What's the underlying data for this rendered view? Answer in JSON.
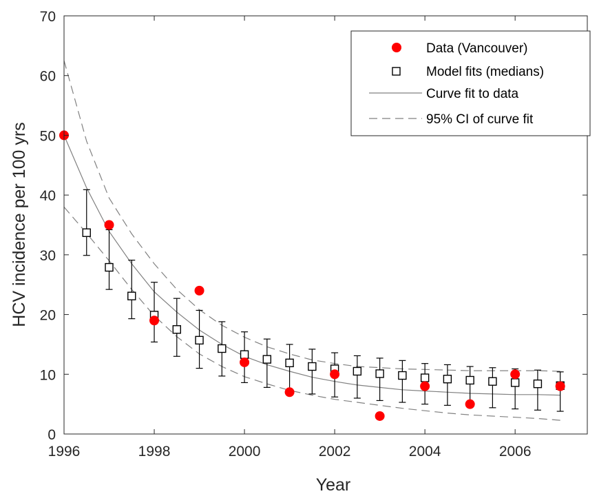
{
  "chart_data": {
    "type": "scatter",
    "xlabel": "Year",
    "ylabel": "HCV incidence per 100 yrs",
    "xlim": [
      1996,
      2007.6
    ],
    "ylim": [
      0,
      70
    ],
    "xticks": [
      1996,
      1998,
      2000,
      2002,
      2004,
      2006
    ],
    "yticks": [
      0,
      10,
      20,
      30,
      40,
      50,
      60,
      70
    ],
    "grid": false,
    "legend_position": "top-right",
    "colors": {
      "data": "#ff0000",
      "model": "#000000",
      "curve": "#808080"
    },
    "series": [
      {
        "name": "Data (Vancouver)",
        "kind": "points",
        "x": [
          1996,
          1997,
          1998,
          1999,
          2000,
          2001,
          2002,
          2003,
          2004,
          2005,
          2006,
          2007
        ],
        "y": [
          50,
          35,
          19,
          24,
          12,
          7,
          10,
          3,
          8,
          5,
          10,
          8
        ]
      },
      {
        "name": "Model fits (medians)",
        "kind": "error-bar-markers",
        "x": [
          1996.5,
          1997,
          1997.5,
          1998,
          1998.5,
          1999,
          1999.5,
          2000,
          2000.5,
          2001,
          2001.5,
          2002,
          2002.5,
          2003,
          2003.5,
          2004,
          2004.5,
          2005,
          2005.5,
          2006,
          2006.5,
          2007
        ],
        "y": [
          33.7,
          27.9,
          23.1,
          19.9,
          17.5,
          15.7,
          14.3,
          13.3,
          12.5,
          11.9,
          11.3,
          10.9,
          10.5,
          10.1,
          9.8,
          9.4,
          9.2,
          9.0,
          8.8,
          8.6,
          8.4,
          8.1
        ],
        "lower": [
          29.9,
          24.2,
          19.3,
          15.4,
          13.0,
          11.0,
          9.7,
          8.6,
          7.8,
          7.1,
          6.7,
          6.2,
          6.0,
          5.6,
          5.3,
          5.0,
          4.8,
          4.6,
          4.4,
          4.2,
          4.0,
          3.8
        ],
        "upper": [
          40.9,
          34.2,
          29.1,
          25.4,
          22.7,
          20.7,
          18.8,
          17.1,
          15.9,
          15.0,
          14.2,
          13.6,
          13.1,
          12.7,
          12.3,
          11.8,
          11.6,
          11.3,
          11.1,
          10.9,
          10.7,
          10.4
        ]
      },
      {
        "name": "Curve fit to data",
        "kind": "solid-line",
        "x": [
          1996,
          1996.5,
          1997,
          1997.5,
          1998,
          1998.5,
          1999,
          1999.5,
          2000,
          2000.5,
          2001,
          2001.5,
          2002,
          2002.5,
          2003,
          2003.5,
          2004,
          2004.5,
          2005,
          2005.5,
          2006,
          2006.5,
          2007
        ],
        "y": [
          50,
          41.2,
          33.9,
          28.5,
          23.8,
          20.4,
          17.4,
          15.0,
          13.0,
          11.6,
          10.5,
          9.5,
          8.8,
          8.2,
          7.8,
          7.4,
          7.2,
          7.0,
          6.8,
          6.7,
          6.6,
          6.6,
          6.5
        ]
      },
      {
        "name": "95% CI of curve fit",
        "kind": "dashed-line",
        "upper": {
          "x": [
            1996,
            1996.5,
            1997,
            1997.5,
            1998,
            1998.5,
            1999,
            1999.5,
            2000,
            2000.5,
            2001,
            2001.5,
            2002,
            2002.5,
            2003,
            2003.5,
            2004,
            2004.5,
            2005,
            2005.5,
            2006,
            2006.5,
            2007
          ],
          "y": [
            62.5,
            49.0,
            39.5,
            33.5,
            28.5,
            24.2,
            20.8,
            18.2,
            16.2,
            14.6,
            13.4,
            12.4,
            11.8,
            11.3,
            11.1,
            10.9,
            10.8,
            10.7,
            10.6,
            10.6,
            10.6,
            10.6,
            10.5
          ]
        },
        "lower": {
          "x": [
            1996,
            1996.5,
            1997,
            1997.5,
            1998,
            1998.5,
            1999,
            1999.5,
            2000,
            2000.5,
            2001,
            2001.5,
            2002,
            2002.5,
            2003,
            2003.5,
            2004,
            2004.5,
            2005,
            2005.5,
            2006,
            2006.5,
            2007
          ],
          "y": [
            38.0,
            33.6,
            29.0,
            24.2,
            19.8,
            16.3,
            13.4,
            11.3,
            9.6,
            8.4,
            7.3,
            6.5,
            5.8,
            5.3,
            4.8,
            4.3,
            3.9,
            3.5,
            3.2,
            3.0,
            2.8,
            2.6,
            2.3
          ]
        }
      }
    ]
  }
}
